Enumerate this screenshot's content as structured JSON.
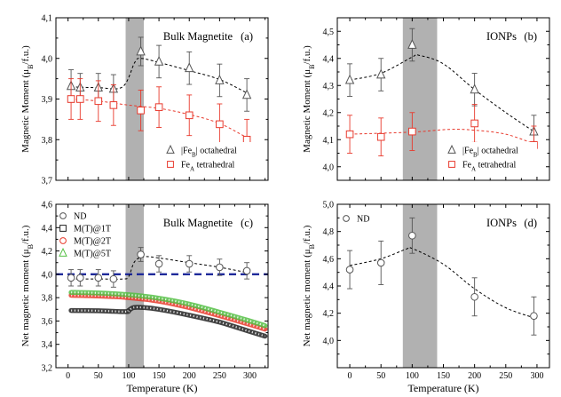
{
  "chart_data": [
    {
      "panel": "(a)",
      "type": "scatter",
      "title": "Bulk Magnetite",
      "xlabel": "",
      "ylabel": "Magnetic Moment (μB/f.u.)",
      "xlim": [
        -20,
        330
      ],
      "ylim": [
        3.7,
        4.1
      ],
      "xticks": [
        0,
        50,
        100,
        150,
        200,
        250,
        300
      ],
      "yticks": [
        3.7,
        3.8,
        3.9,
        4.0,
        4.1
      ],
      "xticklabels": false,
      "shaded_x_range": [
        95,
        125
      ],
      "legend_position": "bottom-right",
      "series": [
        {
          "name": "|FeB| octahedral",
          "name_main": "|Fe",
          "name_sub": "B",
          "name_rest": "| octahedral",
          "marker": "triangle",
          "color": "#555555",
          "fit": "dashed",
          "fit_color": "#000000",
          "x": [
            5,
            20,
            50,
            75,
            120,
            150,
            200,
            250,
            295
          ],
          "y": [
            3.932,
            3.928,
            3.928,
            3.925,
            4.017,
            3.992,
            3.976,
            3.946,
            3.91
          ],
          "err": [
            0.04,
            0.035,
            0.035,
            0.035,
            0.035,
            0.04,
            0.04,
            0.04,
            0.04
          ],
          "fit_points": [
            [
              5,
              3.93
            ],
            [
              50,
              3.928
            ],
            [
              90,
              3.93
            ],
            [
              110,
              3.99
            ],
            [
              120,
              4.0
            ],
            [
              150,
              3.99
            ],
            [
              200,
              3.97
            ],
            [
              250,
              3.948
            ],
            [
              295,
              3.915
            ]
          ]
        },
        {
          "name": "FeA tetrahedral",
          "name_main": "Fe",
          "name_sub": "A",
          "name_rest": " tetrahedral",
          "marker": "square",
          "color": "#e8392c",
          "fit": "dashed",
          "fit_color": "#e8392c",
          "x": [
            5,
            20,
            50,
            75,
            120,
            150,
            200,
            250,
            295
          ],
          "y": [
            3.9,
            3.9,
            3.895,
            3.885,
            3.872,
            3.88,
            3.86,
            3.838,
            3.8
          ],
          "err": [
            0.05,
            0.05,
            0.05,
            0.05,
            0.05,
            0.05,
            0.05,
            0.05,
            0.05
          ],
          "fit_points": [
            [
              5,
              3.9
            ],
            [
              50,
              3.895
            ],
            [
              100,
              3.885
            ],
            [
              150,
              3.877
            ],
            [
              200,
              3.862
            ],
            [
              250,
              3.84
            ],
            [
              295,
              3.805
            ]
          ]
        }
      ]
    },
    {
      "panel": "(b)",
      "type": "scatter",
      "title": "IONPs",
      "xlabel": "",
      "ylabel": "Magnetic Moment (μB/f.u.)",
      "xlim": [
        -20,
        320
      ],
      "ylim": [
        3.95,
        4.55
      ],
      "xticks": [
        0,
        50,
        100,
        150,
        200,
        250,
        300
      ],
      "yticks": [
        4.0,
        4.1,
        4.2,
        4.3,
        4.4,
        4.5
      ],
      "xticklabels": false,
      "shaded_x_range": [
        85,
        140
      ],
      "legend_position": "bottom-right",
      "series": [
        {
          "name": "|FeB| octahedral",
          "name_main": "|Fe",
          "name_sub": "B",
          "name_rest": "| octahedral",
          "marker": "triangle",
          "color": "#555555",
          "fit": "dashed",
          "fit_color": "#000000",
          "x": [
            0,
            50,
            100,
            200,
            295
          ],
          "y": [
            4.32,
            4.34,
            4.45,
            4.285,
            4.13
          ],
          "err": [
            0.06,
            0.06,
            0.06,
            0.06,
            0.06
          ],
          "fit_points": [
            [
              0,
              4.32
            ],
            [
              50,
              4.345
            ],
            [
              100,
              4.405
            ],
            [
              110,
              4.412
            ],
            [
              150,
              4.38
            ],
            [
              200,
              4.285
            ],
            [
              250,
              4.2
            ],
            [
              295,
              4.13
            ]
          ]
        },
        {
          "name": "FeA tetrahedral",
          "name_main": "Fe",
          "name_sub": "A",
          "name_rest": " tetrahedral",
          "marker": "square",
          "color": "#e8392c",
          "fit": "dashed",
          "fit_color": "#e8392c",
          "x": [
            0,
            50,
            100,
            200,
            295
          ],
          "y": [
            4.12,
            4.11,
            4.13,
            4.16,
            4.08
          ],
          "err": [
            0.07,
            0.07,
            0.07,
            0.07,
            0.07
          ],
          "fit_points": [
            [
              0,
              4.12
            ],
            [
              100,
              4.128
            ],
            [
              160,
              4.138
            ],
            [
              200,
              4.135
            ],
            [
              250,
              4.12
            ],
            [
              295,
              4.085
            ]
          ]
        }
      ]
    },
    {
      "panel": "(c)",
      "type": "scatter",
      "title": "Bulk Magnetite",
      "xlabel": "Temperature (K)",
      "ylabel": "Net magnetic moment (μB/f.u.)",
      "xlim": [
        -20,
        330
      ],
      "ylim": [
        3.2,
        4.6
      ],
      "xticks": [
        0,
        50,
        100,
        150,
        200,
        250,
        300
      ],
      "yticks": [
        3.2,
        3.4,
        3.6,
        3.8,
        4.0,
        4.2,
        4.4,
        4.6
      ],
      "shaded_x_range": [
        95,
        125
      ],
      "reference_line_y": 4.0,
      "reference_line_color": "#1e2a9a",
      "legend_position": "top-left",
      "series": [
        {
          "name": "ND",
          "marker": "circle",
          "color": "#555555",
          "fit": "dashed",
          "fit_color": "#000000",
          "x": [
            5,
            20,
            50,
            75,
            120,
            150,
            200,
            250,
            295
          ],
          "y": [
            3.97,
            3.97,
            3.97,
            3.96,
            4.17,
            4.09,
            4.09,
            4.06,
            4.03
          ],
          "err": [
            0.07,
            0.07,
            0.07,
            0.07,
            0.06,
            0.07,
            0.07,
            0.07,
            0.07
          ],
          "fit_points": [
            [
              5,
              3.96
            ],
            [
              50,
              3.96
            ],
            [
              90,
              3.96
            ],
            [
              100,
              3.98
            ],
            [
              110,
              4.11
            ],
            [
              125,
              4.15
            ],
            [
              150,
              4.14
            ],
            [
              200,
              4.1
            ],
            [
              250,
              4.06
            ],
            [
              300,
              4.01
            ]
          ]
        },
        {
          "name": "M(T)@1T",
          "marker": "square",
          "color": "#222222",
          "continuous": true,
          "curve": [
            [
              5,
              3.69
            ],
            [
              50,
              3.688
            ],
            [
              95,
              3.68
            ],
            [
              100,
              3.69
            ],
            [
              108,
              3.715
            ],
            [
              125,
              3.715
            ],
            [
              150,
              3.7
            ],
            [
              200,
              3.65
            ],
            [
              250,
              3.59
            ],
            [
              300,
              3.51
            ],
            [
              325,
              3.47
            ]
          ]
        },
        {
          "name": "M(T)@2T",
          "marker": "circle",
          "color": "#e8392c",
          "continuous": true,
          "curve": [
            [
              5,
              3.82
            ],
            [
              50,
              3.815
            ],
            [
              100,
              3.8
            ],
            [
              150,
              3.77
            ],
            [
              200,
              3.715
            ],
            [
              250,
              3.645
            ],
            [
              300,
              3.57
            ],
            [
              325,
              3.53
            ]
          ]
        },
        {
          "name": "M(T)@5T",
          "marker": "triangle",
          "color": "#55c045",
          "continuous": true,
          "curve": [
            [
              5,
              3.845
            ],
            [
              50,
              3.84
            ],
            [
              100,
              3.825
            ],
            [
              150,
              3.795
            ],
            [
              200,
              3.745
            ],
            [
              250,
              3.675
            ],
            [
              300,
              3.6
            ],
            [
              325,
              3.56
            ]
          ]
        }
      ]
    },
    {
      "panel": "(d)",
      "type": "scatter",
      "title": "IONPs",
      "xlabel": "Temperature (K)",
      "ylabel": "Net magnetic moment (μB/f.u.)",
      "xlim": [
        -20,
        320
      ],
      "ylim": [
        3.8,
        5.0
      ],
      "xticks": [
        0,
        50,
        100,
        150,
        200,
        250,
        300
      ],
      "yticks": [
        3.8,
        4.0,
        4.2,
        4.4,
        4.6,
        4.8,
        5.0
      ],
      "yticklabels_shown": [
        4.0,
        4.2,
        4.4,
        4.6,
        4.8,
        5.0
      ],
      "shaded_x_range": [
        85,
        140
      ],
      "legend_position": "top-left",
      "series": [
        {
          "name": "ND",
          "marker": "circle",
          "color": "#555555",
          "fit": "dashed",
          "fit_color": "#000000",
          "x": [
            0,
            50,
            100,
            200,
            295
          ],
          "y": [
            4.52,
            4.57,
            4.77,
            4.32,
            4.18
          ],
          "err": [
            0.14,
            0.16,
            0.13,
            0.14,
            0.14
          ],
          "fit_points": [
            [
              0,
              4.55
            ],
            [
              50,
              4.6
            ],
            [
              90,
              4.67
            ],
            [
              100,
              4.675
            ],
            [
              150,
              4.56
            ],
            [
              200,
              4.38
            ],
            [
              250,
              4.24
            ],
            [
              300,
              4.16
            ]
          ]
        }
      ]
    }
  ]
}
